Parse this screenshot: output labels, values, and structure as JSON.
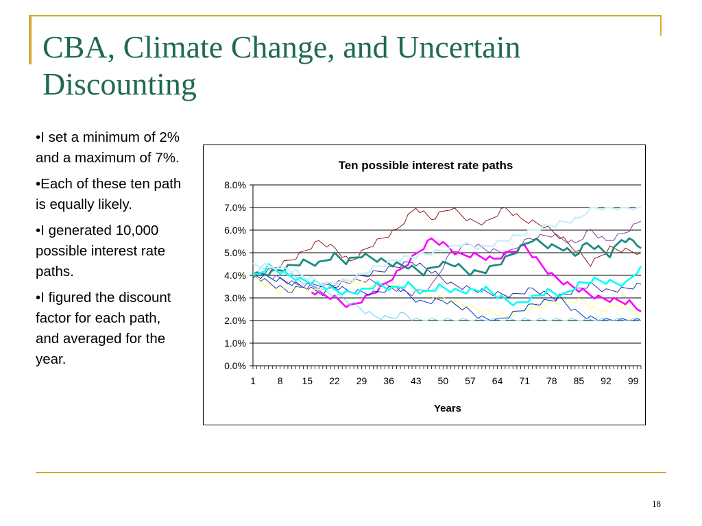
{
  "slide": {
    "title_line1": "CBA, Climate Change, and Uncertain",
    "title_line2": "Discounting",
    "bullets": [
      "•I set a minimum of 2% and a maximum of 7%.",
      "•Each of these ten path is equally likely.",
      "•I generated 10,000 possible interest rate paths.",
      "•I figured the discount factor for each path, and averaged for the year."
    ],
    "page_number": "18",
    "accent_color": "#d4a830",
    "title_color": "#1f6b4e"
  },
  "chart_data": {
    "type": "line",
    "title": "Ten possible interest rate paths",
    "xlabel": "Years",
    "ylabel": "",
    "x_tick_labels": [
      "1",
      "8",
      "15",
      "22",
      "29",
      "36",
      "43",
      "50",
      "57",
      "64",
      "71",
      "78",
      "85",
      "92",
      "99"
    ],
    "x_tick_values": [
      1,
      8,
      15,
      22,
      29,
      36,
      43,
      50,
      57,
      64,
      71,
      78,
      85,
      92,
      99
    ],
    "xlim": [
      1,
      101
    ],
    "y_tick_labels": [
      "0.0%",
      "1.0%",
      "2.0%",
      "3.0%",
      "4.0%",
      "5.0%",
      "6.0%",
      "7.0%",
      "8.0%"
    ],
    "ylim": [
      0,
      8
    ],
    "grid": "horizontal",
    "legend": "none",
    "series": [
      {
        "color": "#8b1a1a",
        "width": 1,
        "anchors": [
          [
            1,
            4.0
          ],
          [
            5,
            4.2
          ],
          [
            12,
            4.8
          ],
          [
            18,
            5.5
          ],
          [
            22,
            5.2
          ],
          [
            26,
            4.6
          ],
          [
            32,
            5.4
          ],
          [
            38,
            6.0
          ],
          [
            43,
            7.0
          ],
          [
            47,
            6.5
          ],
          [
            52,
            7.0
          ],
          [
            57,
            6.4
          ],
          [
            61,
            6.3
          ],
          [
            66,
            7.0
          ],
          [
            70,
            6.5
          ],
          [
            76,
            6.2
          ],
          [
            81,
            5.6
          ],
          [
            85,
            5.0
          ],
          [
            88,
            4.5
          ],
          [
            93,
            5.2
          ],
          [
            97,
            5.1
          ],
          [
            101,
            5.0
          ]
        ]
      },
      {
        "color": "#2a2a9a",
        "width": 1,
        "anchors": [
          [
            1,
            4.0
          ],
          [
            6,
            3.6
          ],
          [
            10,
            3.3
          ],
          [
            14,
            3.5
          ],
          [
            19,
            3.2
          ],
          [
            24,
            3.7
          ],
          [
            30,
            4.0
          ],
          [
            36,
            4.3
          ],
          [
            42,
            4.6
          ],
          [
            47,
            4.2
          ],
          [
            52,
            3.6
          ],
          [
            57,
            3.4
          ],
          [
            63,
            3.2
          ],
          [
            68,
            3.1
          ],
          [
            73,
            3.4
          ],
          [
            79,
            3.0
          ],
          [
            85,
            3.4
          ],
          [
            88,
            3.6
          ],
          [
            92,
            3.3
          ],
          [
            97,
            3.4
          ],
          [
            101,
            3.6
          ]
        ]
      },
      {
        "color": "#7b3d9e",
        "width": 1,
        "anchors": [
          [
            1,
            4.1
          ],
          [
            7,
            3.9
          ],
          [
            12,
            3.6
          ],
          [
            18,
            3.5
          ],
          [
            24,
            3.7
          ],
          [
            30,
            3.8
          ],
          [
            36,
            3.5
          ],
          [
            42,
            3.2
          ],
          [
            47,
            3.5
          ],
          [
            52,
            5.0
          ],
          [
            57,
            5.4
          ],
          [
            62,
            5.1
          ],
          [
            67,
            5.0
          ],
          [
            72,
            5.6
          ],
          [
            78,
            5.8
          ],
          [
            84,
            5.4
          ],
          [
            88,
            6.0
          ],
          [
            92,
            5.5
          ],
          [
            96,
            5.8
          ],
          [
            101,
            6.4
          ]
        ]
      },
      {
        "color": "#ff00ff",
        "width": 2.6,
        "anchors": [
          [
            16,
            3.3
          ],
          [
            20,
            3.1
          ],
          [
            22,
            3.0
          ],
          [
            26,
            2.6
          ],
          [
            30,
            3.0
          ],
          [
            35,
            3.6
          ],
          [
            40,
            4.4
          ],
          [
            44,
            5.1
          ],
          [
            47,
            5.6
          ],
          [
            51,
            5.3
          ],
          [
            54,
            4.9
          ],
          [
            58,
            4.9
          ],
          [
            63,
            4.7
          ],
          [
            67,
            5.0
          ],
          [
            71,
            5.3
          ],
          [
            74,
            4.7
          ],
          [
            78,
            4.0
          ],
          [
            82,
            3.6
          ],
          [
            86,
            3.3
          ],
          [
            90,
            3.0
          ],
          [
            94,
            2.9
          ],
          [
            98,
            2.8
          ],
          [
            101,
            2.4
          ]
        ]
      },
      {
        "color": "#ffff66",
        "width": 1,
        "anchors": [
          [
            1,
            4.0
          ],
          [
            4,
            3.6
          ],
          [
            8,
            3.3
          ],
          [
            12,
            3.5
          ],
          [
            17,
            3.3
          ],
          [
            22,
            3.6
          ],
          [
            28,
            3.7
          ],
          [
            34,
            3.4
          ],
          [
            40,
            3.6
          ],
          [
            46,
            3.1
          ],
          [
            50,
            3.0
          ],
          [
            55,
            2.7
          ],
          [
            61,
            2.4
          ],
          [
            67,
            2.2
          ],
          [
            72,
            2.5
          ],
          [
            79,
            2.8
          ],
          [
            86,
            2.9
          ],
          [
            90,
            2.4
          ],
          [
            95,
            2.7
          ],
          [
            101,
            2.3
          ]
        ]
      },
      {
        "color": "#0033cc",
        "width": 1,
        "anchors": [
          [
            2,
            4.0
          ],
          [
            8,
            3.8
          ],
          [
            14,
            3.5
          ],
          [
            20,
            3.6
          ],
          [
            26,
            3.3
          ],
          [
            32,
            3.2
          ],
          [
            38,
            3.5
          ],
          [
            44,
            2.8
          ],
          [
            50,
            2.9
          ],
          [
            56,
            2.5
          ],
          [
            60,
            2.1
          ],
          [
            64,
            2.0
          ],
          [
            68,
            2.3
          ],
          [
            73,
            2.7
          ],
          [
            80,
            3.0
          ],
          [
            84,
            2.4
          ],
          [
            88,
            2.1
          ],
          [
            91,
            2.0
          ],
          [
            101,
            2.0
          ]
        ]
      },
      {
        "color": "#5fd3e8",
        "width": 1,
        "anchors": [
          [
            1,
            4.2
          ],
          [
            5,
            4.3
          ],
          [
            10,
            4.1
          ],
          [
            15,
            3.6
          ],
          [
            19,
            3.3
          ],
          [
            24,
            3.0
          ],
          [
            28,
            2.6
          ],
          [
            32,
            2.2
          ],
          [
            36,
            2.1
          ],
          [
            40,
            2.3
          ],
          [
            43,
            2.0
          ],
          [
            101,
            2.0
          ]
        ]
      },
      {
        "color": "#1f8a80",
        "width": 2.8,
        "anchors": [
          [
            1,
            4.0
          ],
          [
            5,
            4.1
          ],
          [
            9,
            4.3
          ],
          [
            14,
            4.6
          ],
          [
            18,
            4.5
          ],
          [
            22,
            4.9
          ],
          [
            25,
            4.6
          ],
          [
            29,
            4.9
          ],
          [
            33,
            4.7
          ],
          [
            37,
            4.5
          ],
          [
            41,
            4.4
          ],
          [
            45,
            4.1
          ],
          [
            49,
            4.5
          ],
          [
            53,
            4.5
          ],
          [
            57,
            4.1
          ],
          [
            61,
            4.2
          ],
          [
            65,
            4.6
          ],
          [
            69,
            5.1
          ],
          [
            73,
            5.6
          ],
          [
            77,
            5.3
          ],
          [
            81,
            5.2
          ],
          [
            84,
            4.9
          ],
          [
            87,
            5.4
          ],
          [
            90,
            5.2
          ],
          [
            93,
            4.9
          ],
          [
            96,
            5.6
          ],
          [
            99,
            5.5
          ],
          [
            101,
            5.2
          ]
        ]
      },
      {
        "color": "#00ffff",
        "width": 2.6,
        "anchors": [
          [
            1,
            3.9
          ],
          [
            5,
            4.4
          ],
          [
            9,
            4.1
          ],
          [
            13,
            3.8
          ],
          [
            17,
            3.7
          ],
          [
            21,
            3.4
          ],
          [
            25,
            3.2
          ],
          [
            29,
            3.3
          ],
          [
            33,
            3.6
          ],
          [
            37,
            3.4
          ],
          [
            41,
            3.6
          ],
          [
            45,
            3.2
          ],
          [
            49,
            3.5
          ],
          [
            53,
            3.3
          ],
          [
            57,
            3.3
          ],
          [
            61,
            3.4
          ],
          [
            65,
            3.0
          ],
          [
            69,
            2.7
          ],
          [
            73,
            3.0
          ],
          [
            77,
            3.3
          ],
          [
            81,
            3.1
          ],
          [
            85,
            3.6
          ],
          [
            89,
            3.8
          ],
          [
            93,
            3.7
          ],
          [
            97,
            3.6
          ],
          [
            101,
            4.4
          ]
        ]
      },
      {
        "color": "#c8f0f8",
        "width": 2.4,
        "anchors": [
          [
            1,
            4.5
          ],
          [
            5,
            4.4
          ],
          [
            10,
            4.3
          ],
          [
            15,
            3.9
          ],
          [
            20,
            3.6
          ],
          [
            26,
            3.8
          ],
          [
            32,
            4.3
          ],
          [
            38,
            4.7
          ],
          [
            44,
            4.9
          ],
          [
            50,
            5.1
          ],
          [
            55,
            5.4
          ],
          [
            60,
            5.2
          ],
          [
            65,
            5.5
          ],
          [
            70,
            5.8
          ],
          [
            75,
            6.1
          ],
          [
            80,
            6.3
          ],
          [
            85,
            6.5
          ],
          [
            88,
            7.0
          ],
          [
            101,
            7.0
          ]
        ]
      }
    ]
  }
}
